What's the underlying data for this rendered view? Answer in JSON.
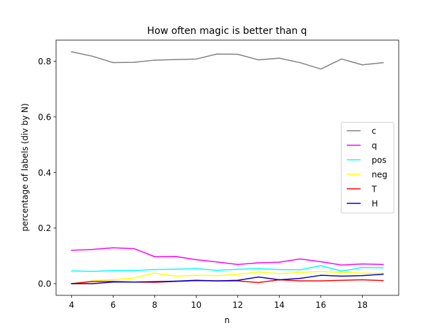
{
  "chart_data": {
    "type": "line",
    "title": "How often magic is better than q",
    "xlabel": "n",
    "ylabel": "percentage of labels (div by N)",
    "x": [
      4,
      5,
      6,
      7,
      8,
      9,
      10,
      11,
      12,
      13,
      14,
      15,
      16,
      17,
      18,
      19
    ],
    "xlim": [
      3.25,
      19.75
    ],
    "ylim": [
      -0.042,
      0.876
    ],
    "xticks": [
      4,
      6,
      8,
      10,
      12,
      14,
      16,
      18
    ],
    "yticks": [
      0.0,
      0.2,
      0.4,
      0.6,
      0.8
    ],
    "ytick_labels": [
      "0.0",
      "0.2",
      "0.4",
      "0.6",
      "0.8"
    ],
    "grid": false,
    "legend_position": "center-right",
    "series": [
      {
        "name": "c",
        "color": "#808080",
        "values": [
          0.834,
          0.818,
          0.795,
          0.796,
          0.804,
          0.806,
          0.808,
          0.826,
          0.825,
          0.805,
          0.811,
          0.795,
          0.772,
          0.808,
          0.787,
          0.795
        ]
      },
      {
        "name": "q",
        "color": "#ff00ff",
        "values": [
          0.12,
          0.123,
          0.129,
          0.126,
          0.097,
          0.098,
          0.086,
          0.078,
          0.069,
          0.075,
          0.077,
          0.089,
          0.079,
          0.067,
          0.071,
          0.069
        ]
      },
      {
        "name": "pos",
        "color": "#00ffff",
        "values": [
          0.046,
          0.044,
          0.047,
          0.047,
          0.051,
          0.052,
          0.054,
          0.048,
          0.052,
          0.054,
          0.051,
          0.05,
          0.065,
          0.045,
          0.058,
          0.057
        ]
      },
      {
        "name": "neg",
        "color": "#ffff00",
        "values": [
          0.0,
          0.01,
          0.015,
          0.02,
          0.038,
          0.027,
          0.03,
          0.029,
          0.034,
          0.042,
          0.036,
          0.04,
          0.044,
          0.04,
          0.038,
          0.037
        ]
      },
      {
        "name": "T",
        "color": "#ff0000",
        "values": [
          0.0,
          0.008,
          0.008,
          0.006,
          0.005,
          0.008,
          0.011,
          0.01,
          0.01,
          0.004,
          0.014,
          0.01,
          0.01,
          0.012,
          0.014,
          0.011
        ]
      },
      {
        "name": "H",
        "color": "#0000cd",
        "values": [
          0.0,
          0.0,
          0.006,
          0.006,
          0.007,
          0.009,
          0.012,
          0.01,
          0.012,
          0.024,
          0.014,
          0.019,
          0.03,
          0.027,
          0.029,
          0.034
        ]
      }
    ]
  }
}
